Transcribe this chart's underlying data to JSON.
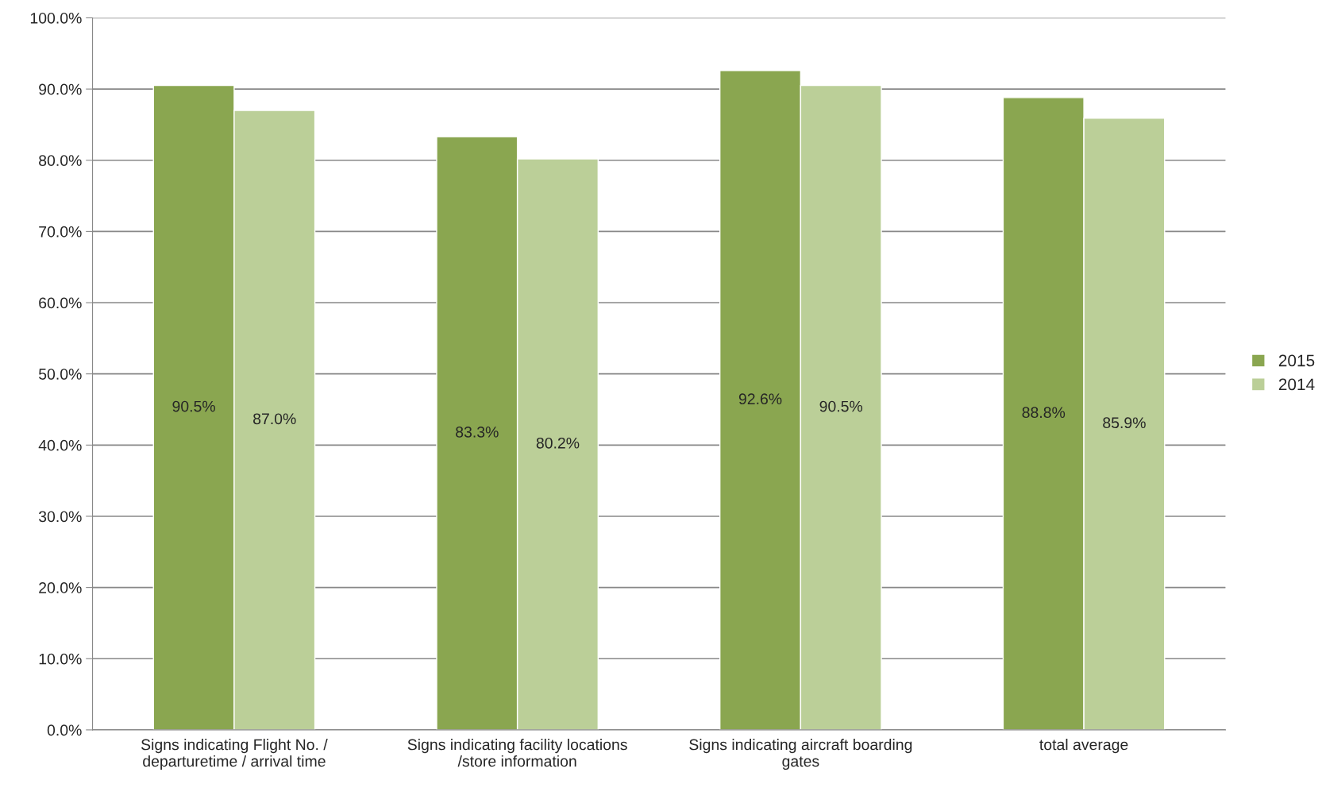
{
  "chart_data": {
    "type": "bar",
    "categories": [
      "Signs indicating Flight No. /\ndeparturetime / arrival time",
      "Signs indicating facility locations\n/store information",
      "Signs indicating aircraft boarding\ngates",
      "total average"
    ],
    "series": [
      {
        "name": "2015",
        "color": "#8aa650",
        "values": [
          90.5,
          83.3,
          92.6,
          88.8
        ],
        "value_labels": [
          "90.5%",
          "83.3%",
          "92.6%",
          "88.8%"
        ]
      },
      {
        "name": "2014",
        "color": "#bbcf98",
        "values": [
          87.0,
          80.2,
          90.5,
          85.9
        ],
        "value_labels": [
          "87.0%",
          "80.2%",
          "90.5%",
          "85.9%"
        ]
      }
    ],
    "ylim": [
      0,
      100
    ],
    "yticks": [
      {
        "value": 0,
        "label": "0.0%"
      },
      {
        "value": 10,
        "label": "10.0%"
      },
      {
        "value": 20,
        "label": "20.0%"
      },
      {
        "value": 30,
        "label": "30.0%"
      },
      {
        "value": 40,
        "label": "40.0%"
      },
      {
        "value": 50,
        "label": "50.0%"
      },
      {
        "value": 60,
        "label": "60.0%"
      },
      {
        "value": 70,
        "label": "70.0%"
      },
      {
        "value": 80,
        "label": "80.0%"
      },
      {
        "value": 90,
        "label": "90.0%"
      },
      {
        "value": 100,
        "label": "100.0%"
      }
    ],
    "grid": "y",
    "legend": "right"
  }
}
